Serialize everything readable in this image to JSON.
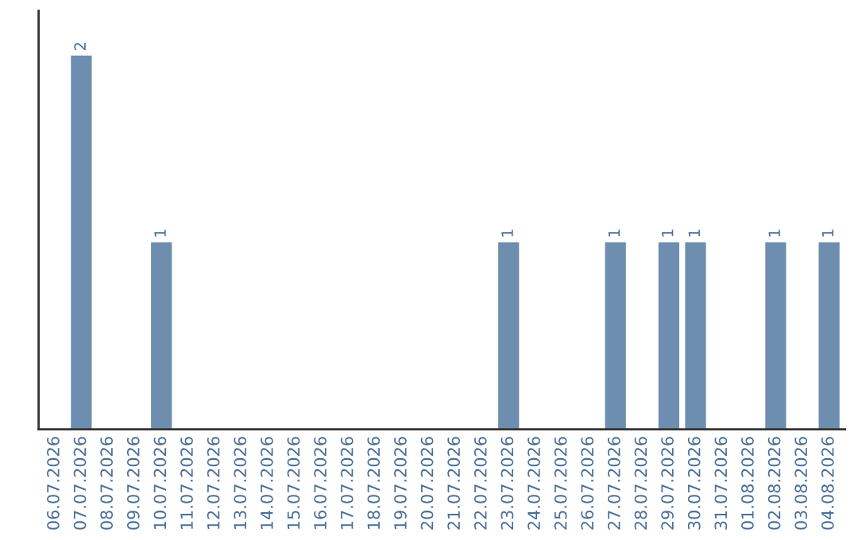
{
  "chart_data": {
    "type": "bar",
    "categories": [
      "06.07.2026",
      "07.07.2026",
      "08.07.2026",
      "09.07.2026",
      "10.07.2026",
      "11.07.2026",
      "12.07.2026",
      "13.07.2026",
      "14.07.2026",
      "15.07.2026",
      "16.07.2026",
      "17.07.2026",
      "18.07.2026",
      "19.07.2026",
      "20.07.2026",
      "21.07.2026",
      "22.07.2026",
      "23.07.2026",
      "24.07.2026",
      "25.07.2026",
      "26.07.2026",
      "27.07.2026",
      "28.07.2026",
      "29.07.2026",
      "30.07.2026",
      "31.07.2026",
      "01.08.2026",
      "02.08.2026",
      "03.08.2026",
      "04.08.2026"
    ],
    "values": [
      0,
      2,
      0,
      0,
      1,
      0,
      0,
      0,
      0,
      0,
      0,
      0,
      0,
      0,
      0,
      0,
      0,
      1,
      0,
      0,
      0,
      1,
      0,
      1,
      1,
      0,
      0,
      1,
      0,
      1
    ],
    "value_labels": [
      null,
      "2",
      null,
      null,
      "1",
      null,
      null,
      null,
      null,
      null,
      null,
      null,
      null,
      null,
      null,
      null,
      null,
      "1",
      null,
      null,
      null,
      "1",
      null,
      "1",
      "1",
      null,
      null,
      "1",
      null,
      "1"
    ],
    "color": "#6d8eae",
    "tick_labels": "x",
    "grid": false,
    "legend": false
  }
}
